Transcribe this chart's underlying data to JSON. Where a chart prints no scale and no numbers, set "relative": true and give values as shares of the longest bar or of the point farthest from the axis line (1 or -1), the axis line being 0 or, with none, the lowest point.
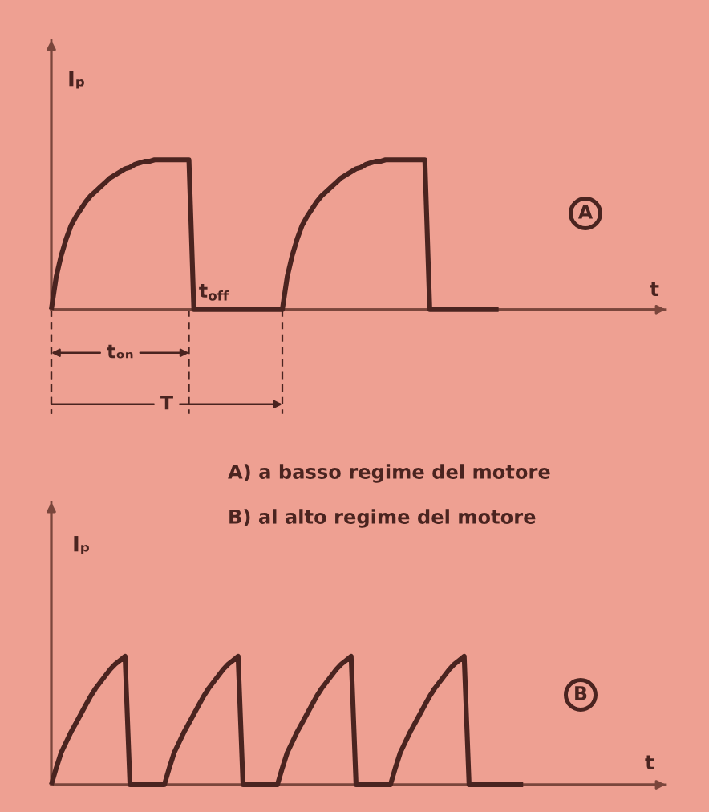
{
  "chart_data": [
    {
      "type": "line",
      "title": "A",
      "subtitle": "A) a basso regime del motore",
      "xlabel": "t",
      "ylabel": "Iₚ",
      "annotations": [
        "tₒₙ",
        "t$_{off}$",
        "T"
      ],
      "relative": true,
      "categories": [
        null,
        null,
        null,
        null,
        null,
        null,
        null,
        null,
        null,
        null,
        null,
        null,
        null,
        null,
        null,
        null,
        null,
        null,
        null,
        null,
        null,
        null,
        null,
        null,
        null,
        null,
        null,
        null,
        null,
        null,
        null,
        null,
        null,
        null,
        null,
        null,
        null,
        null,
        null,
        null,
        null,
        null,
        null,
        null,
        null,
        null,
        null,
        null,
        null,
        null,
        null,
        null,
        null,
        null,
        null,
        null,
        null,
        null,
        null,
        null,
        null,
        null,
        null,
        null,
        null,
        null,
        null,
        null,
        null,
        null,
        null,
        null,
        null,
        null,
        null,
        null,
        null,
        null,
        null,
        null,
        null,
        null,
        null,
        null,
        null,
        null,
        null,
        null,
        null,
        null,
        null,
        null,
        null,
        null,
        null,
        null,
        null,
        null,
        null,
        null,
        null,
        null,
        null,
        null,
        null,
        null,
        null,
        null,
        null,
        null,
        null,
        null,
        null,
        null,
        null,
        null,
        null,
        null,
        null,
        null,
        null,
        null,
        null,
        null,
        null,
        null
      ],
      "series": [
        {
          "color": "#4a2420",
          "values": [
            0,
            0.22,
            0.36,
            0.47,
            0.56,
            0.62,
            0.67,
            0.72,
            0.76,
            0.79,
            0.82,
            0.85,
            0.88,
            0.9,
            0.92,
            0.94,
            0.95,
            0.97,
            0.98,
            0.99,
            0.99,
            1,
            1,
            1,
            1,
            1,
            1,
            1,
            1,
            0,
            0,
            0,
            0,
            0,
            0,
            0,
            0,
            0,
            0,
            0,
            0,
            0,
            0,
            0,
            0,
            0,
            0,
            0,
            0.22,
            0.36,
            0.47,
            0.56,
            0.62,
            0.67,
            0.72,
            0.76,
            0.79,
            0.82,
            0.85,
            0.88,
            0.9,
            0.92,
            0.94,
            0.95,
            0.97,
            0.98,
            0.99,
            0.99,
            1,
            1,
            1,
            1,
            1,
            1,
            1,
            1,
            1,
            0,
            0,
            0,
            0,
            0,
            0,
            0,
            0,
            0,
            0,
            0,
            0,
            0,
            0,
            0,
            null,
            null,
            null,
            null,
            null,
            null,
            null,
            null,
            null,
            null,
            null,
            null,
            null,
            null,
            null,
            null,
            null,
            null,
            null,
            null,
            null,
            null,
            null,
            null,
            null,
            null,
            null,
            null,
            null,
            null,
            null,
            null,
            null,
            null
          ]
        }
      ]
    },
    {
      "type": "line",
      "title": "B",
      "subtitle": "B) al alto regime del motore",
      "xlabel": "t",
      "ylabel": "Iₚ",
      "relative": true,
      "categories": [
        null,
        null,
        null,
        null,
        null,
        null,
        null,
        null,
        null,
        null,
        null,
        null,
        null,
        null,
        null,
        null,
        null,
        null,
        null,
        null,
        null,
        null,
        null,
        null,
        null,
        null,
        null,
        null,
        null,
        null,
        null,
        null,
        null,
        null,
        null,
        null,
        null,
        null,
        null,
        null,
        null,
        null,
        null,
        null,
        null,
        null,
        null,
        null,
        null,
        null,
        null,
        null,
        null,
        null,
        null,
        null,
        null,
        null,
        null,
        null,
        null,
        null,
        null,
        null,
        null,
        null,
        null,
        null,
        null,
        null,
        null,
        null,
        null,
        null,
        null,
        null,
        null,
        null,
        null,
        null,
        null,
        null,
        null,
        null,
        null,
        null,
        null,
        null,
        null,
        null,
        null,
        null,
        null,
        null,
        null,
        null,
        null,
        null,
        null,
        null,
        null,
        null,
        null,
        null,
        null,
        null,
        null,
        null,
        null,
        null,
        null,
        null,
        null,
        null,
        null,
        null,
        null,
        null,
        null,
        null,
        null,
        null,
        null,
        null,
        null,
        null
      ],
      "series": [
        {
          "color": "#4a2420",
          "values": [
            0,
            0.13,
            0.25,
            0.33,
            0.41,
            0.48,
            0.55,
            0.62,
            0.69,
            0.75,
            0.8,
            0.85,
            0.9,
            0.94,
            0.97,
            1,
            0,
            0,
            0,
            0,
            0,
            0,
            0,
            0,
            0.13,
            0.25,
            0.33,
            0.41,
            0.48,
            0.55,
            0.62,
            0.69,
            0.75,
            0.8,
            0.85,
            0.9,
            0.94,
            0.97,
            1,
            0,
            0,
            0,
            0,
            0,
            0,
            0,
            0,
            0.13,
            0.25,
            0.33,
            0.41,
            0.48,
            0.55,
            0.62,
            0.69,
            0.75,
            0.8,
            0.85,
            0.9,
            0.94,
            0.97,
            1,
            0,
            0,
            0,
            0,
            0,
            0,
            0,
            0,
            0.13,
            0.25,
            0.33,
            0.41,
            0.48,
            0.55,
            0.62,
            0.69,
            0.75,
            0.8,
            0.85,
            0.9,
            0.94,
            0.97,
            1,
            0,
            0,
            0,
            0,
            0,
            0,
            0,
            0,
            0,
            0,
            0,
            0,
            null,
            null,
            null,
            null,
            null,
            null,
            null,
            null,
            null,
            null,
            null,
            null,
            null,
            null,
            null,
            null,
            null,
            null,
            null,
            null,
            null,
            null,
            null,
            null,
            null,
            null,
            null,
            null,
            null
          ]
        }
      ]
    }
  ]
}
